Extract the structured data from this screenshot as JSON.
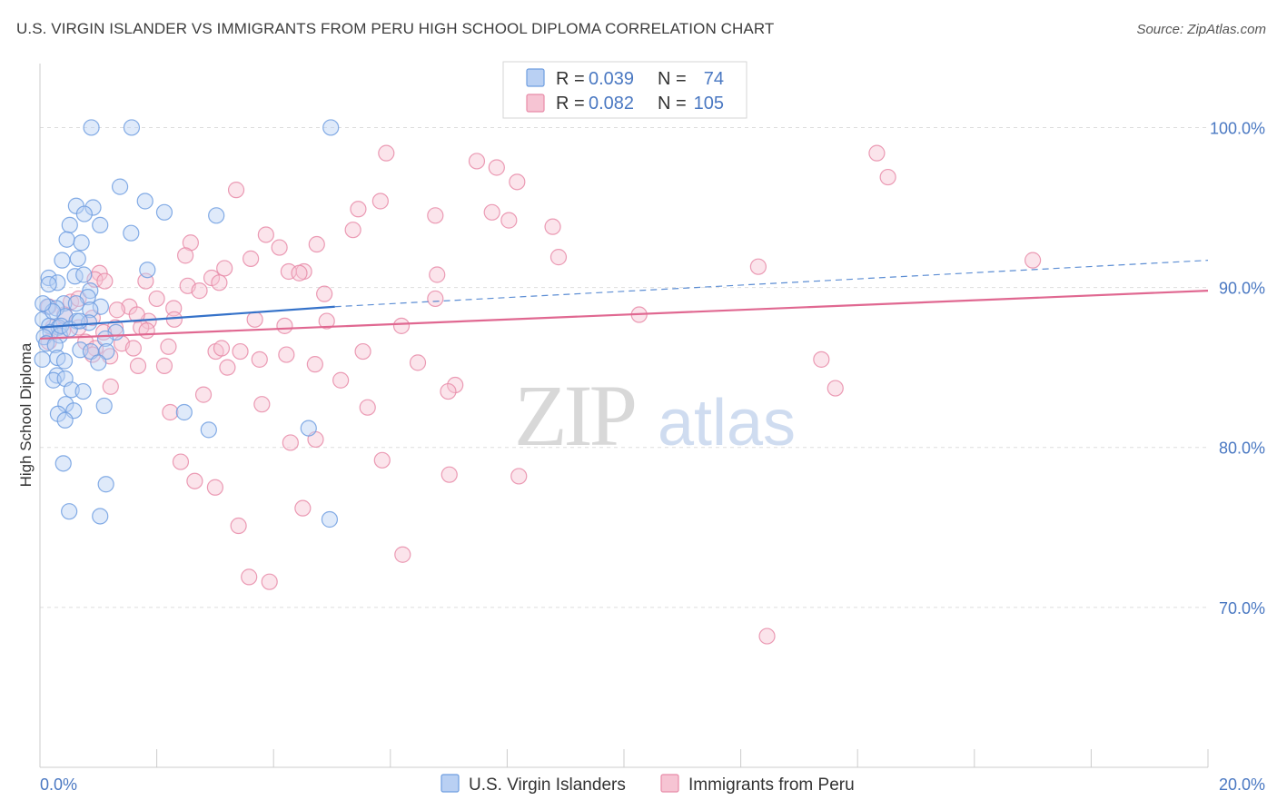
{
  "title": "U.S. VIRGIN ISLANDER VS IMMIGRANTS FROM PERU HIGH SCHOOL DIPLOMA CORRELATION CHART",
  "source": "Source: ZipAtlas.com",
  "watermark": {
    "zip": "ZIP",
    "atlas": "atlas"
  },
  "colors": {
    "series1": "#6f9ee0",
    "series1_fill": "#b9d0f3",
    "series1_line": "#3572c9",
    "series2": "#e88ba8",
    "series2_fill": "#f6c4d3",
    "series2_line": "#e06891",
    "grid": "#dddddd",
    "tick": "#4a78c2"
  },
  "legend": {
    "rows": [
      {
        "r_label": "R =",
        "r_value": "0.039",
        "n_label": "N =",
        "n_value": "74"
      },
      {
        "r_label": "R =",
        "r_value": "0.082",
        "n_label": "N =",
        "n_value": "105"
      }
    ]
  },
  "chart_data": {
    "type": "scatter",
    "title": "U.S. VIRGIN ISLANDER VS IMMIGRANTS FROM PERU HIGH SCHOOL DIPLOMA CORRELATION CHART",
    "xlabel": "",
    "ylabel": "High School Diploma",
    "xlim": [
      0,
      20
    ],
    "ylim": [
      60,
      104
    ],
    "x_tick_labels": [
      "0.0%",
      "20.0%"
    ],
    "y_ticks": [
      70,
      80,
      90,
      100
    ],
    "y_tick_labels": [
      "70.0%",
      "80.0%",
      "90.0%",
      "100.0%"
    ],
    "grid": true,
    "legend_position": "top-center",
    "series": [
      {
        "name": "U.S. Virgin Islanders",
        "trend": {
          "x0": 0,
          "y0": 87.5,
          "x1": 5.05,
          "y1": 88.8,
          "dashed_to_x": 20,
          "dashed_to_y": 91.7
        },
        "points": [
          [
            0.88,
            100
          ],
          [
            1.57,
            100
          ],
          [
            4.98,
            100
          ],
          [
            1.37,
            96.3
          ],
          [
            1.8,
            95.4
          ],
          [
            2.13,
            94.7
          ],
          [
            3.02,
            94.5
          ],
          [
            0.62,
            95.1
          ],
          [
            0.91,
            95
          ],
          [
            0.76,
            94.6
          ],
          [
            0.51,
            93.9
          ],
          [
            1.03,
            93.9
          ],
          [
            1.56,
            93.4
          ],
          [
            0.46,
            93
          ],
          [
            0.71,
            92.8
          ],
          [
            0.38,
            91.7
          ],
          [
            0.65,
            91.8
          ],
          [
            1.84,
            91.1
          ],
          [
            0.15,
            90.6
          ],
          [
            0.6,
            90.7
          ],
          [
            0.3,
            90.3
          ],
          [
            0.75,
            90.8
          ],
          [
            0.15,
            90.2
          ],
          [
            0.86,
            89.8
          ],
          [
            0.82,
            89.4
          ],
          [
            0.41,
            89
          ],
          [
            0.62,
            89
          ],
          [
            0.13,
            88.8
          ],
          [
            0.28,
            88.7
          ],
          [
            1.04,
            88.8
          ],
          [
            0.86,
            88.6
          ],
          [
            0.43,
            88.2
          ],
          [
            0.05,
            88
          ],
          [
            0.63,
            87.9
          ],
          [
            0.84,
            87.8
          ],
          [
            0.16,
            87.6
          ],
          [
            0.32,
            87.5
          ],
          [
            0.18,
            87.2
          ],
          [
            0.34,
            87
          ],
          [
            0.07,
            86.9
          ],
          [
            1.3,
            87.2
          ],
          [
            1.12,
            86.8
          ],
          [
            0.11,
            86.5
          ],
          [
            0.26,
            86.4
          ],
          [
            0.69,
            86.1
          ],
          [
            0.87,
            86
          ],
          [
            1.14,
            86
          ],
          [
            0.3,
            85.6
          ],
          [
            0.42,
            85.4
          ],
          [
            0.04,
            85.5
          ],
          [
            1.0,
            85.3
          ],
          [
            0.29,
            84.5
          ],
          [
            0.23,
            84.2
          ],
          [
            0.43,
            84.3
          ],
          [
            0.54,
            83.6
          ],
          [
            0.74,
            83.5
          ],
          [
            0.44,
            82.7
          ],
          [
            1.1,
            82.6
          ],
          [
            0.58,
            82.3
          ],
          [
            0.31,
            82.1
          ],
          [
            0.43,
            81.7
          ],
          [
            2.47,
            82.2
          ],
          [
            2.89,
            81.1
          ],
          [
            4.6,
            81.2
          ],
          [
            0.4,
            79
          ],
          [
            1.13,
            77.7
          ],
          [
            0.5,
            76
          ],
          [
            1.03,
            75.7
          ],
          [
            4.96,
            75.5
          ],
          [
            0.36,
            87.6
          ],
          [
            0.22,
            88.5
          ],
          [
            0.51,
            87.4
          ],
          [
            0.68,
            87.9
          ],
          [
            0.05,
            89
          ]
        ]
      },
      {
        "name": "Immigrants from Peru",
        "trend": {
          "x0": 0,
          "y0": 86.8,
          "x1": 20,
          "y1": 89.8
        },
        "points": [
          [
            5.93,
            98.4
          ],
          [
            7.48,
            97.9
          ],
          [
            7.82,
            97.5
          ],
          [
            14.33,
            98.4
          ],
          [
            14.52,
            96.9
          ],
          [
            8.17,
            96.6
          ],
          [
            3.36,
            96.1
          ],
          [
            5.83,
            95.4
          ],
          [
            5.45,
            94.9
          ],
          [
            7.74,
            94.7
          ],
          [
            6.77,
            94.5
          ],
          [
            8.03,
            94.2
          ],
          [
            5.36,
            93.6
          ],
          [
            8.78,
            93.8
          ],
          [
            3.87,
            93.3
          ],
          [
            2.58,
            92.8
          ],
          [
            4.74,
            92.7
          ],
          [
            4.1,
            92.5
          ],
          [
            2.49,
            92
          ],
          [
            3.61,
            91.8
          ],
          [
            8.88,
            91.9
          ],
          [
            17.0,
            91.7
          ],
          [
            3.16,
            91.2
          ],
          [
            12.3,
            91.3
          ],
          [
            4.26,
            91
          ],
          [
            4.52,
            91
          ],
          [
            4.44,
            90.9
          ],
          [
            6.8,
            90.8
          ],
          [
            1.02,
            90.9
          ],
          [
            0.94,
            90.5
          ],
          [
            1.11,
            90.4
          ],
          [
            1.81,
            90.4
          ],
          [
            2.94,
            90.6
          ],
          [
            3.07,
            90.3
          ],
          [
            2.53,
            90.1
          ],
          [
            2.73,
            89.8
          ],
          [
            4.87,
            89.6
          ],
          [
            6.77,
            89.3
          ],
          [
            2.0,
            89.3
          ],
          [
            2.29,
            88.7
          ],
          [
            1.53,
            88.8
          ],
          [
            0.53,
            89.1
          ],
          [
            0.66,
            89.3
          ],
          [
            0.15,
            88.8
          ],
          [
            0.42,
            88.3
          ],
          [
            0.9,
            88.1
          ],
          [
            2.3,
            88
          ],
          [
            1.86,
            87.9
          ],
          [
            1.73,
            87.5
          ],
          [
            1.29,
            87.5
          ],
          [
            3.68,
            88
          ],
          [
            4.91,
            87.9
          ],
          [
            4.19,
            87.6
          ],
          [
            6.19,
            87.6
          ],
          [
            10.26,
            88.3
          ],
          [
            0.66,
            87.5
          ],
          [
            0.22,
            87.5
          ],
          [
            0.39,
            87.3
          ],
          [
            1.09,
            87.2
          ],
          [
            1.83,
            87.3
          ],
          [
            0.15,
            86.6
          ],
          [
            0.78,
            86.6
          ],
          [
            1.4,
            86.5
          ],
          [
            0.95,
            86.2
          ],
          [
            1.6,
            86.2
          ],
          [
            2.2,
            86.3
          ],
          [
            3.01,
            86
          ],
          [
            3.43,
            86
          ],
          [
            3.11,
            86.2
          ],
          [
            4.22,
            85.8
          ],
          [
            5.53,
            86
          ],
          [
            0.9,
            85.8
          ],
          [
            1.2,
            85.7
          ],
          [
            1.68,
            85.1
          ],
          [
            2.13,
            85.1
          ],
          [
            3.21,
            85
          ],
          [
            3.76,
            85.5
          ],
          [
            4.71,
            85.2
          ],
          [
            6.47,
            85.3
          ],
          [
            13.38,
            85.5
          ],
          [
            1.21,
            83.8
          ],
          [
            7.11,
            83.9
          ],
          [
            6.99,
            83.5
          ],
          [
            5.61,
            82.5
          ],
          [
            3.8,
            82.7
          ],
          [
            2.23,
            82.2
          ],
          [
            2.8,
            83.3
          ],
          [
            5.15,
            84.2
          ],
          [
            13.62,
            83.7
          ],
          [
            4.72,
            80.5
          ],
          [
            4.29,
            80.3
          ],
          [
            2.41,
            79.1
          ],
          [
            5.86,
            79.2
          ],
          [
            7.01,
            78.3
          ],
          [
            8.2,
            78.2
          ],
          [
            2.65,
            77.9
          ],
          [
            3.0,
            77.5
          ],
          [
            4.5,
            76.2
          ],
          [
            3.4,
            75.1
          ],
          [
            6.21,
            73.3
          ],
          [
            3.58,
            71.9
          ],
          [
            3.93,
            71.6
          ],
          [
            12.45,
            68.2
          ],
          [
            1.66,
            88.3
          ],
          [
            1.32,
            88.6
          ]
        ]
      }
    ]
  },
  "bottom_legend": {
    "items": [
      {
        "label": "U.S. Virgin Islanders"
      },
      {
        "label": "Immigrants from Peru"
      }
    ]
  }
}
